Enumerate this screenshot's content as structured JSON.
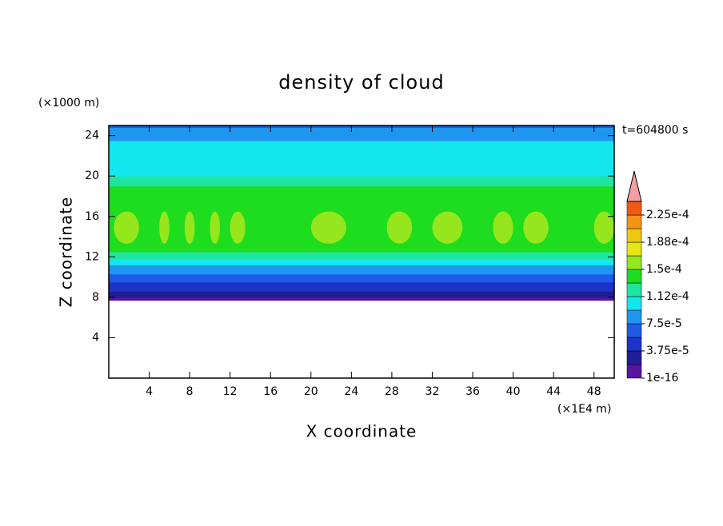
{
  "chart_data": {
    "type": "contour",
    "title": "density of cloud",
    "time_label": "t=604800 s",
    "x_label": "X coordinate",
    "x_unit": "(×1E4 m)",
    "y_label": "Z coordinate",
    "y_unit": "(×1000 m)",
    "xlim": [
      0,
      50
    ],
    "xticks": [
      4,
      8,
      12,
      16,
      20,
      24,
      28,
      32,
      36,
      40,
      44,
      48
    ],
    "ylim": [
      0,
      25
    ],
    "yticks": [
      4,
      8,
      12,
      16,
      20,
      24
    ],
    "levels": [
      1e-16,
      1.875e-05,
      3.75e-05,
      5.625e-05,
      7.5e-05,
      9.375e-05,
      0.0001125,
      0.00013125,
      0.00015,
      0.00016875,
      0.0001875,
      0.00020625,
      0.000225,
      0.00024375
    ],
    "colors": [
      "#5a14a0",
      "#1e1e96",
      "#1e32c8",
      "#1e5ae6",
      "#1e96f0",
      "#14e6f0",
      "#1ee6a0",
      "#1edc1e",
      "#96e61e",
      "#e6e614",
      "#f0c814",
      "#f09614",
      "#f05a14"
    ],
    "extend_color": "#f0a0a0",
    "colorbar_ticks": [
      {
        "value": 1e-16,
        "label": "1e-16"
      },
      {
        "value": 3.75e-05,
        "label": "3.75e-5"
      },
      {
        "value": 7.5e-05,
        "label": "7.5e-5"
      },
      {
        "value": 0.0001125,
        "label": "1.12e-4"
      },
      {
        "value": 0.00015,
        "label": "1.5e-4"
      },
      {
        "value": 0.0001875,
        "label": "1.88e-4"
      },
      {
        "value": 0.000225,
        "label": "2.25e-4"
      }
    ],
    "z_edges": [
      7.7,
      8.0,
      8.6,
      9.5,
      10.3,
      11.2,
      11.8,
      12.5,
      19.0,
      20.0,
      23.5,
      24.8,
      25.0
    ],
    "values": [
      1e-05,
      3e-05,
      5e-05,
      7e-05,
      8.5e-05,
      0.0001,
      0.00012,
      0.00014,
      0.00012,
      0.0001,
      8.5e-05,
      7e-05
    ],
    "patches": {
      "value": 0.000155,
      "z": [
        13.3,
        16.5
      ],
      "x": [
        [
          0.5,
          3
        ],
        [
          5,
          6
        ],
        [
          7.5,
          8.5
        ],
        [
          10,
          11
        ],
        [
          12,
          13.5
        ],
        [
          20,
          23.5
        ],
        [
          27.5,
          30
        ],
        [
          32,
          35
        ],
        [
          38,
          40
        ],
        [
          41,
          43.5
        ],
        [
          48,
          50
        ]
      ]
    }
  }
}
